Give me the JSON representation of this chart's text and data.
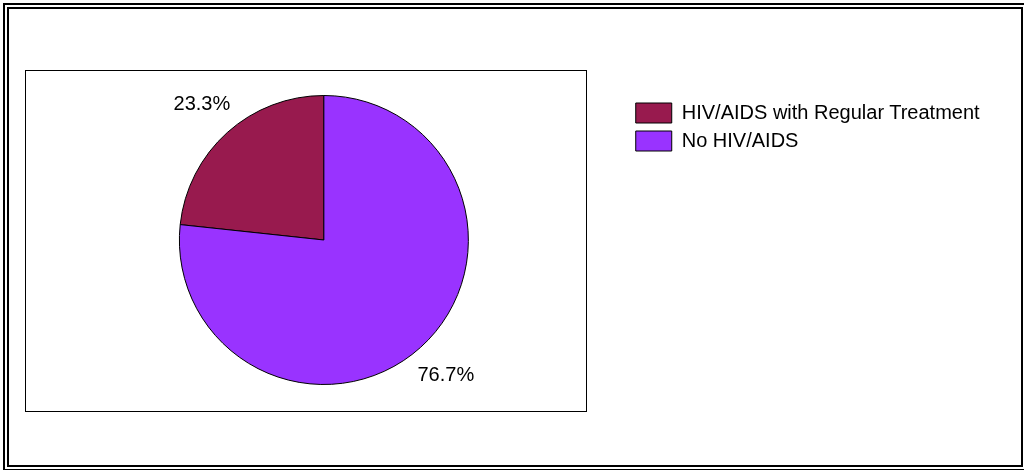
{
  "chart_data": {
    "type": "pie",
    "categories": [
      "HIV/AIDS with Regular Treatment",
      "No HIV/AIDS"
    ],
    "values": [
      23.3,
      76.7
    ],
    "colors": [
      "#981a4e",
      "#9933ff"
    ],
    "value_labels": [
      "23.3%",
      "76.7%"
    ],
    "legend": "top right"
  }
}
